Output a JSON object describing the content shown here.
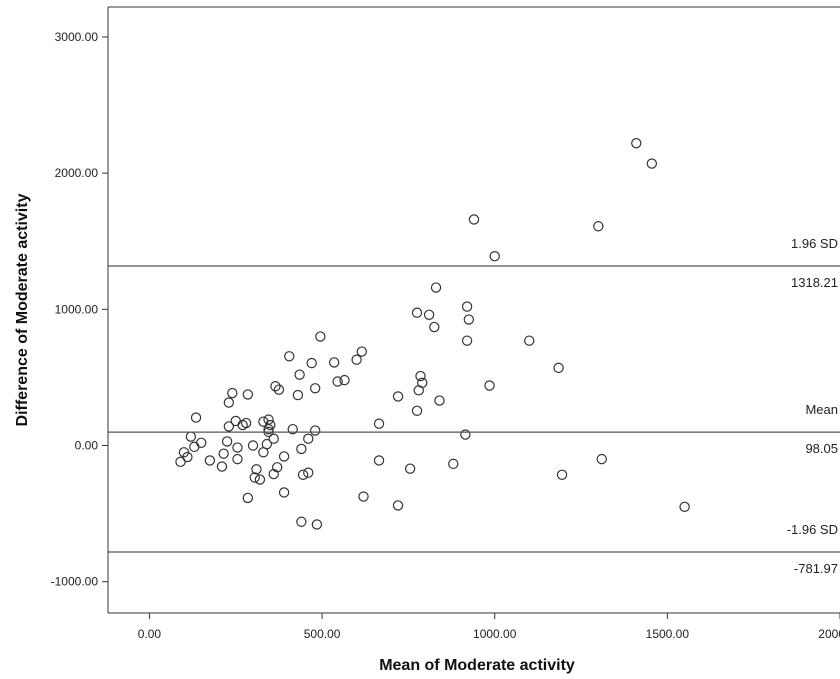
{
  "chart_data": {
    "type": "scatter",
    "title": "",
    "xlabel": "Mean of Moderate activity",
    "ylabel": "Difference of Moderate activity",
    "xlim": [
      -120,
      2000
    ],
    "ylim": [
      -1230,
      3220
    ],
    "xticks": [
      0,
      500,
      1000,
      1500,
      2000
    ],
    "xtick_labels": [
      "0.00",
      "500.00",
      "1000.00",
      "1500.00",
      "2000.00"
    ],
    "yticks": [
      -1000,
      0,
      1000,
      2000,
      3000
    ],
    "ytick_labels": [
      "-1000.00",
      "0.00",
      "1000.00",
      "2000.00",
      "3000.00"
    ],
    "grid": false,
    "reference_lines": [
      {
        "value": 1318.21,
        "name": "1.96 SD",
        "value_label": "1318.21"
      },
      {
        "value": 98.05,
        "name": "Mean",
        "value_label": "98.05"
      },
      {
        "value": -781.97,
        "name": "-1.96 SD",
        "value_label": "-781.97"
      }
    ],
    "points": [
      [
        1410,
        2220
      ],
      [
        1455,
        2070
      ],
      [
        940,
        1660
      ],
      [
        1300,
        1610
      ],
      [
        1000,
        1390
      ],
      [
        830,
        1160
      ],
      [
        920,
        1020
      ],
      [
        775,
        975
      ],
      [
        810,
        960
      ],
      [
        925,
        925
      ],
      [
        825,
        870
      ],
      [
        495,
        800
      ],
      [
        1100,
        770
      ],
      [
        920,
        770
      ],
      [
        615,
        690
      ],
      [
        405,
        655
      ],
      [
        600,
        630
      ],
      [
        535,
        610
      ],
      [
        470,
        605
      ],
      [
        1185,
        570
      ],
      [
        435,
        520
      ],
      [
        785,
        510
      ],
      [
        565,
        480
      ],
      [
        545,
        470
      ],
      [
        790,
        460
      ],
      [
        985,
        440
      ],
      [
        365,
        435
      ],
      [
        375,
        410
      ],
      [
        780,
        405
      ],
      [
        480,
        420
      ],
      [
        240,
        385
      ],
      [
        285,
        375
      ],
      [
        430,
        370
      ],
      [
        720,
        360
      ],
      [
        840,
        330
      ],
      [
        230,
        315
      ],
      [
        775,
        255
      ],
      [
        135,
        205
      ],
      [
        250,
        180
      ],
      [
        330,
        175
      ],
      [
        345,
        190
      ],
      [
        280,
        165
      ],
      [
        665,
        160
      ],
      [
        350,
        150
      ],
      [
        270,
        150
      ],
      [
        230,
        140
      ],
      [
        345,
        120
      ],
      [
        480,
        110
      ],
      [
        415,
        120
      ],
      [
        345,
        100
      ],
      [
        120,
        65
      ],
      [
        915,
        80
      ],
      [
        360,
        50
      ],
      [
        460,
        50
      ],
      [
        225,
        30
      ],
      [
        150,
        20
      ],
      [
        340,
        10
      ],
      [
        300,
        0
      ],
      [
        130,
        -10
      ],
      [
        255,
        -15
      ],
      [
        440,
        -25
      ],
      [
        100,
        -50
      ],
      [
        330,
        -50
      ],
      [
        215,
        -60
      ],
      [
        390,
        -80
      ],
      [
        110,
        -85
      ],
      [
        255,
        -100
      ],
      [
        1310,
        -100
      ],
      [
        175,
        -110
      ],
      [
        665,
        -110
      ],
      [
        90,
        -120
      ],
      [
        210,
        -155
      ],
      [
        370,
        -160
      ],
      [
        880,
        -135
      ],
      [
        755,
        -170
      ],
      [
        310,
        -175
      ],
      [
        460,
        -200
      ],
      [
        360,
        -210
      ],
      [
        445,
        -215
      ],
      [
        1195,
        -215
      ],
      [
        305,
        -235
      ],
      [
        320,
        -250
      ],
      [
        390,
        -345
      ],
      [
        620,
        -375
      ],
      [
        285,
        -385
      ],
      [
        720,
        -440
      ],
      [
        1550,
        -450
      ],
      [
        440,
        -560
      ],
      [
        485,
        -580
      ]
    ]
  }
}
